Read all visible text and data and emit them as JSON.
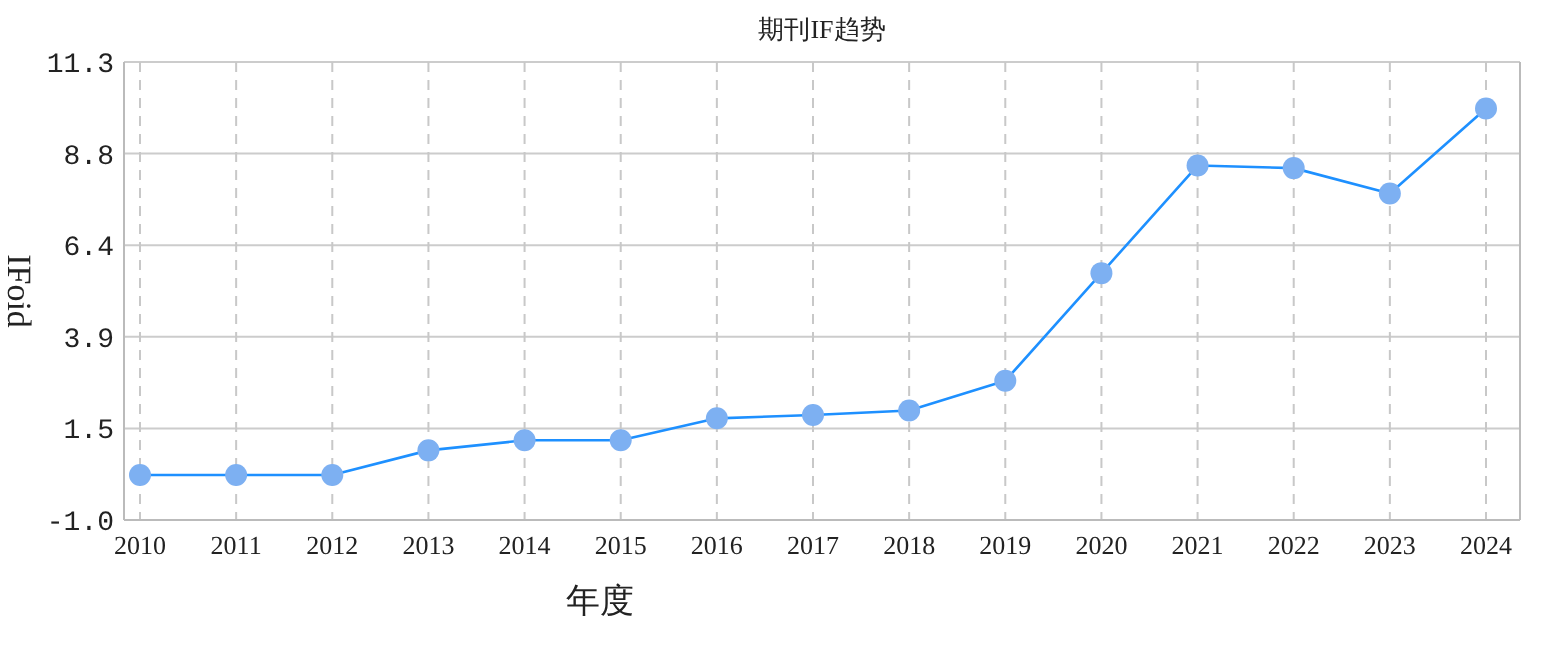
{
  "chart_data": {
    "type": "line",
    "title": "期刊IF趋势",
    "xlabel": "年度",
    "ylabel": "IFoid",
    "categories": [
      "2010",
      "2011",
      "2012",
      "2013",
      "2014",
      "2015",
      "2016",
      "2017",
      "2018",
      "2019",
      "2020",
      "2021",
      "2022",
      "2023",
      "2024"
    ],
    "series": [
      {
        "color": "#1e90ff",
        "values": [
          0.21,
          0.21,
          0.21,
          0.87,
          1.14,
          1.14,
          1.73,
          1.82,
          1.94,
          2.74,
          5.63,
          8.52,
          8.45,
          7.77,
          10.05
        ]
      }
    ],
    "ylim": [
      -1.0,
      11.3
    ],
    "yticks": [
      {
        "value": -1.0,
        "label": "-1.0"
      },
      {
        "value": 1.46,
        "label": "1.5"
      },
      {
        "value": 3.92,
        "label": "3.9"
      },
      {
        "value": 6.38,
        "label": "6.4"
      },
      {
        "value": 8.84,
        "label": "8.8"
      },
      {
        "value": 11.3,
        "label": "11.3"
      }
    ],
    "grid": true,
    "marker": "circle",
    "line_style": "solid"
  }
}
